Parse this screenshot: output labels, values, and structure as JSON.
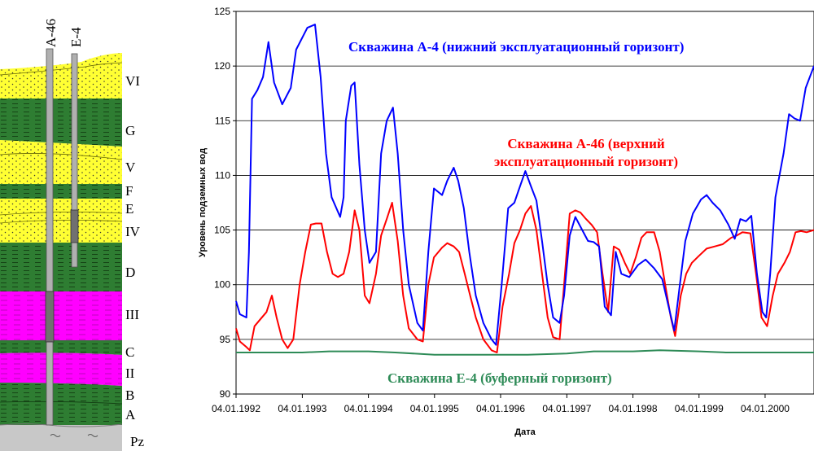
{
  "section": {
    "wells": [
      "A-46",
      "E-4"
    ],
    "layers": [
      {
        "name": "VI",
        "type": "sand"
      },
      {
        "name": "G",
        "type": "clay"
      },
      {
        "name": "V",
        "type": "sand"
      },
      {
        "name": "F",
        "type": "clay"
      },
      {
        "name": "E",
        "type": "sand"
      },
      {
        "name": "IV",
        "type": "sand"
      },
      {
        "name": "D",
        "type": "clay"
      },
      {
        "name": "III",
        "type": "aquifer"
      },
      {
        "name": "C",
        "type": "clay"
      },
      {
        "name": "II",
        "type": "aquifer"
      },
      {
        "name": "B",
        "type": "clay"
      },
      {
        "name": "A",
        "type": "clay"
      },
      {
        "name": "Pz",
        "type": "basement"
      }
    ],
    "colors": {
      "sand": "#FFFF33",
      "clay": "#2E7D32",
      "aquifer": "#FF00FF",
      "basement": "#C8C8C8"
    }
  },
  "chart_data": {
    "type": "line",
    "xlabel": "Дата",
    "ylabel": "Уровень подземных вод",
    "ylim": [
      90,
      125
    ],
    "yticks": [
      90,
      95,
      100,
      105,
      110,
      115,
      120,
      125
    ],
    "xlim": [
      "1992-01-04",
      "2000-09-30"
    ],
    "xticks": [
      "1992-01-04",
      "1993-01-04",
      "1994-01-04",
      "1995-01-04",
      "1996-01-04",
      "1997-01-04",
      "1998-01-04",
      "1999-01-04",
      "2000-01-04"
    ],
    "xtick_labels": [
      "04.01.1992",
      "04.01.1993",
      "04.01.1994",
      "04.01.1995",
      "04.01.1996",
      "04.01.1997",
      "04.01.1998",
      "04.01.1999",
      "04.01.2000"
    ],
    "grid": "horizontal",
    "series": [
      {
        "name": "Скважина A-4 (нижний эксплуатационный горизонт)",
        "color": "#0000FF",
        "points": [
          [
            "1992-01-04",
            98.5
          ],
          [
            "1992-01-25",
            97.3
          ],
          [
            "1992-03-01",
            97.0
          ],
          [
            "1992-03-15",
            103
          ],
          [
            "1992-04-01",
            117
          ],
          [
            "1992-05-01",
            117.8
          ],
          [
            "1992-06-01",
            119
          ],
          [
            "1992-07-01",
            122.2
          ],
          [
            "1992-08-01",
            118.5
          ],
          [
            "1992-09-15",
            116.5
          ],
          [
            "1992-11-01",
            118
          ],
          [
            "1992-12-01",
            121.5
          ],
          [
            "1993-02-01",
            123.5
          ],
          [
            "1993-03-15",
            123.8
          ],
          [
            "1993-04-15",
            119
          ],
          [
            "1993-05-15",
            112
          ],
          [
            "1993-06-15",
            108
          ],
          [
            "1993-08-01",
            106.2
          ],
          [
            "1993-08-20",
            108
          ],
          [
            "1993-09-01",
            115
          ],
          [
            "1993-10-01",
            118.2
          ],
          [
            "1993-10-20",
            118.5
          ],
          [
            "1993-11-15",
            111
          ],
          [
            "1993-12-15",
            105
          ],
          [
            "1994-01-10",
            102
          ],
          [
            "1994-02-15",
            103
          ],
          [
            "1994-03-15",
            112
          ],
          [
            "1994-04-15",
            115
          ],
          [
            "1994-05-20",
            116.2
          ],
          [
            "1994-06-15",
            112
          ],
          [
            "1994-07-15",
            105
          ],
          [
            "1994-08-15",
            100
          ],
          [
            "1994-10-01",
            96.5
          ],
          [
            "1994-11-01",
            95.8
          ],
          [
            "1994-12-01",
            103
          ],
          [
            "1995-01-01",
            108.8
          ],
          [
            "1995-02-15",
            108.2
          ],
          [
            "1995-03-15",
            109.5
          ],
          [
            "1995-04-20",
            110.7
          ],
          [
            "1995-05-15",
            109.5
          ],
          [
            "1995-06-15",
            107
          ],
          [
            "1995-07-15",
            103
          ],
          [
            "1995-08-20",
            99
          ],
          [
            "1995-10-01",
            96.5
          ],
          [
            "1995-11-15",
            95
          ],
          [
            "1995-12-10",
            94.5
          ],
          [
            "1996-01-10",
            100
          ],
          [
            "1996-02-15",
            107
          ],
          [
            "1996-03-20",
            107.5
          ],
          [
            "1996-04-20",
            109
          ],
          [
            "1996-05-20",
            110.4
          ],
          [
            "1996-06-20",
            109
          ],
          [
            "1996-07-20",
            107.7
          ],
          [
            "1996-08-20",
            104
          ],
          [
            "1996-09-20",
            100
          ],
          [
            "1996-10-20",
            97
          ],
          [
            "1996-11-25",
            96.5
          ],
          [
            "1996-12-20",
            99
          ],
          [
            "1997-01-20",
            104.5
          ],
          [
            "1997-02-20",
            106.2
          ],
          [
            "1997-03-20",
            105.3
          ],
          [
            "1997-05-01",
            104
          ],
          [
            "1997-06-01",
            103.9
          ],
          [
            "1997-07-01",
            103.5
          ],
          [
            "1997-08-01",
            98
          ],
          [
            "1997-09-05",
            97.2
          ],
          [
            "1997-10-01",
            103
          ],
          [
            "1997-11-01",
            101
          ],
          [
            "1997-12-15",
            100.7
          ],
          [
            "1998-02-01",
            101.8
          ],
          [
            "1998-03-15",
            102.3
          ],
          [
            "1998-05-01",
            101.5
          ],
          [
            "1998-06-15",
            100.5
          ],
          [
            "1998-07-20",
            98
          ],
          [
            "1998-08-20",
            95.8
          ],
          [
            "1998-09-20",
            100
          ],
          [
            "1998-10-20",
            104
          ],
          [
            "1998-12-01",
            106.5
          ],
          [
            "1999-01-15",
            107.8
          ],
          [
            "1999-02-15",
            108.2
          ],
          [
            "1999-03-20",
            107.5
          ],
          [
            "1999-05-01",
            106.8
          ],
          [
            "1999-06-15",
            105.5
          ],
          [
            "1999-07-20",
            104.2
          ],
          [
            "1999-08-20",
            106
          ],
          [
            "1999-09-20",
            105.8
          ],
          [
            "1999-10-20",
            106.3
          ],
          [
            "1999-11-20",
            101
          ],
          [
            "1999-12-20",
            97.5
          ],
          [
            "2000-01-10",
            97
          ],
          [
            "2000-02-01",
            101
          ],
          [
            "2000-03-01",
            108
          ],
          [
            "2000-04-15",
            112
          ],
          [
            "2000-05-15",
            115.6
          ],
          [
            "2000-06-15",
            115.2
          ],
          [
            "2000-07-15",
            115
          ],
          [
            "2000-08-15",
            118
          ],
          [
            "2000-09-30",
            120
          ]
        ]
      },
      {
        "name": "Скважина A-46 (верхний эксплуатационный горизонт)",
        "color": "#FF0000",
        "points": [
          [
            "1992-01-04",
            96
          ],
          [
            "1992-01-25",
            94.8
          ],
          [
            "1992-03-01",
            94.3
          ],
          [
            "1992-03-20",
            94
          ],
          [
            "1992-04-15",
            96.2
          ],
          [
            "1992-05-15",
            96.8
          ],
          [
            "1992-06-20",
            97.5
          ],
          [
            "1992-07-20",
            99
          ],
          [
            "1992-08-15",
            97
          ],
          [
            "1992-09-15",
            95
          ],
          [
            "1992-10-15",
            94.2
          ],
          [
            "1992-11-15",
            95
          ],
          [
            "1992-12-20",
            100
          ],
          [
            "1993-01-20",
            103
          ],
          [
            "1993-02-20",
            105.5
          ],
          [
            "1993-03-20",
            105.6
          ],
          [
            "1993-04-20",
            105.6
          ],
          [
            "1993-05-20",
            103
          ],
          [
            "1993-06-20",
            101
          ],
          [
            "1993-07-20",
            100.7
          ],
          [
            "1993-08-20",
            101
          ],
          [
            "1993-09-20",
            103
          ],
          [
            "1993-10-20",
            106.8
          ],
          [
            "1993-11-15",
            105
          ],
          [
            "1993-12-15",
            99
          ],
          [
            "1994-01-10",
            98.3
          ],
          [
            "1994-02-15",
            101
          ],
          [
            "1994-03-15",
            104.5
          ],
          [
            "1994-04-15",
            106
          ],
          [
            "1994-05-15",
            107.5
          ],
          [
            "1994-06-15",
            104
          ],
          [
            "1994-07-15",
            99
          ],
          [
            "1994-08-15",
            96
          ],
          [
            "1994-10-01",
            95
          ],
          [
            "1994-11-01",
            94.8
          ],
          [
            "1994-12-01",
            100
          ],
          [
            "1995-01-01",
            102.5
          ],
          [
            "1995-02-15",
            103.4
          ],
          [
            "1995-03-15",
            103.8
          ],
          [
            "1995-04-20",
            103.5
          ],
          [
            "1995-05-20",
            103
          ],
          [
            "1995-06-20",
            101
          ],
          [
            "1995-07-20",
            99
          ],
          [
            "1995-08-20",
            97
          ],
          [
            "1995-10-01",
            95
          ],
          [
            "1995-11-15",
            94
          ],
          [
            "1995-12-15",
            93.8
          ],
          [
            "1996-01-15",
            98
          ],
          [
            "1996-02-20",
            101
          ],
          [
            "1996-03-20",
            103.8
          ],
          [
            "1996-04-20",
            105
          ],
          [
            "1996-05-20",
            106.5
          ],
          [
            "1996-06-20",
            107.2
          ],
          [
            "1996-07-20",
            105
          ],
          [
            "1996-08-20",
            101
          ],
          [
            "1996-09-20",
            97
          ],
          [
            "1996-10-20",
            95.2
          ],
          [
            "1996-11-25",
            95
          ],
          [
            "1996-12-20",
            100
          ],
          [
            "1997-01-20",
            106.5
          ],
          [
            "1997-02-20",
            106.8
          ],
          [
            "1997-03-20",
            106.6
          ],
          [
            "1997-04-20",
            106
          ],
          [
            "1997-05-20",
            105.5
          ],
          [
            "1997-06-20",
            104.8
          ],
          [
            "1997-07-20",
            101
          ],
          [
            "1997-08-20",
            97.5
          ],
          [
            "1997-09-20",
            103.5
          ],
          [
            "1997-10-20",
            103.2
          ],
          [
            "1997-11-20",
            102
          ],
          [
            "1997-12-20",
            101
          ],
          [
            "1998-01-20",
            102.5
          ],
          [
            "1998-02-20",
            104.3
          ],
          [
            "1998-03-20",
            104.8
          ],
          [
            "1998-05-01",
            104.8
          ],
          [
            "1998-06-01",
            103
          ],
          [
            "1998-07-01",
            100
          ],
          [
            "1998-08-01",
            97
          ],
          [
            "1998-08-25",
            95.3
          ],
          [
            "1998-09-25",
            99
          ],
          [
            "1998-10-25",
            101
          ],
          [
            "1998-11-25",
            102
          ],
          [
            "1999-01-01",
            102.6
          ],
          [
            "1999-02-15",
            103.3
          ],
          [
            "1999-04-01",
            103.5
          ],
          [
            "1999-05-15",
            103.7
          ],
          [
            "1999-07-01",
            104.3
          ],
          [
            "1999-08-01",
            104.5
          ],
          [
            "1999-09-01",
            104.8
          ],
          [
            "1999-10-15",
            104.7
          ],
          [
            "1999-11-15",
            101
          ],
          [
            "1999-12-15",
            97
          ],
          [
            "2000-01-15",
            96.2
          ],
          [
            "2000-02-15",
            99
          ],
          [
            "2000-03-15",
            101
          ],
          [
            "2000-04-20",
            102
          ],
          [
            "2000-05-20",
            103
          ],
          [
            "2000-06-20",
            104.8
          ],
          [
            "2000-07-20",
            104.9
          ],
          [
            "2000-08-20",
            104.8
          ],
          [
            "2000-09-30",
            105
          ]
        ]
      },
      {
        "name": "Скважина E-4 (буферный горизонт)",
        "color": "#2E8B57",
        "points": [
          [
            "1992-01-04",
            93.8
          ],
          [
            "1993-01-04",
            93.8
          ],
          [
            "1993-06-01",
            93.9
          ],
          [
            "1994-01-04",
            93.9
          ],
          [
            "1994-06-01",
            93.8
          ],
          [
            "1995-01-04",
            93.6
          ],
          [
            "1995-06-01",
            93.6
          ],
          [
            "1996-01-04",
            93.6
          ],
          [
            "1996-06-01",
            93.6
          ],
          [
            "1997-01-04",
            93.7
          ],
          [
            "1997-06-01",
            93.9
          ],
          [
            "1998-01-04",
            93.9
          ],
          [
            "1998-06-01",
            94.0
          ],
          [
            "1999-01-04",
            93.9
          ],
          [
            "1999-06-01",
            93.8
          ],
          [
            "2000-01-04",
            93.8
          ],
          [
            "2000-09-30",
            93.8
          ]
        ]
      }
    ]
  }
}
